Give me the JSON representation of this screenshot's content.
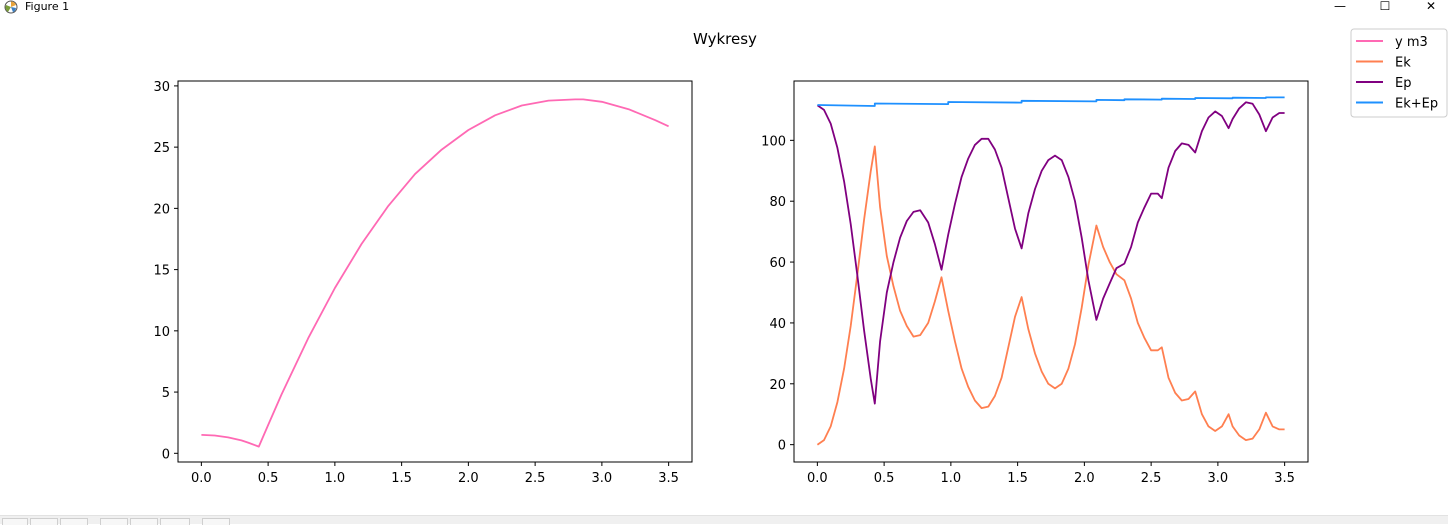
{
  "window": {
    "title": "Figure 1",
    "icon": "matplotlib-icon",
    "buttons": [
      {
        "name": "minimize-button",
        "glyph": "—"
      },
      {
        "name": "maximize-button",
        "glyph": "☐"
      },
      {
        "name": "close-button",
        "glyph": "✕"
      }
    ]
  },
  "toolbar": {
    "buttons": [
      "home-icon",
      "back-icon",
      "forward-icon",
      "pan-icon",
      "zoom-icon",
      "subplots-icon",
      "save-icon"
    ]
  },
  "figure": {
    "suptitle": "Wykresy"
  },
  "chart_data": [
    {
      "type": "line",
      "title": "",
      "xlabel": "",
      "ylabel": "",
      "xlim": [
        -0.175,
        3.675
      ],
      "ylim": [
        -0.71,
        30.4
      ],
      "xticks": [
        0.0,
        0.5,
        1.0,
        1.5,
        2.0,
        2.5,
        3.0,
        3.5
      ],
      "xtick_labels": [
        "0.0",
        "0.5",
        "1.0",
        "1.5",
        "2.0",
        "2.5",
        "3.0",
        "3.5"
      ],
      "yticks": [
        0,
        5,
        10,
        15,
        20,
        25,
        30
      ],
      "ytick_labels": [
        "0",
        "5",
        "10",
        "15",
        "20",
        "25",
        "30"
      ],
      "grid": false,
      "series": [
        {
          "name": "y m3",
          "color": "#ff69b4",
          "x": [
            0.0,
            0.1,
            0.2,
            0.3,
            0.35,
            0.43,
            0.5,
            0.6,
            0.8,
            1.0,
            1.2,
            1.4,
            1.6,
            1.8,
            2.0,
            2.2,
            2.4,
            2.6,
            2.8,
            2.86,
            3.0,
            3.2,
            3.4,
            3.5
          ],
          "y": [
            1.5,
            1.45,
            1.3,
            1.05,
            0.87,
            0.55,
            2.3,
            4.8,
            9.4,
            13.5,
            17.1,
            20.2,
            22.8,
            24.8,
            26.4,
            27.6,
            28.4,
            28.8,
            28.9,
            28.9,
            28.7,
            28.1,
            27.2,
            26.7
          ]
        }
      ]
    },
    {
      "type": "line",
      "title": "",
      "xlabel": "",
      "ylabel": "",
      "xlim": [
        -0.175,
        3.675
      ],
      "ylim": [
        -5.7,
        119.5
      ],
      "xticks": [
        0.0,
        0.5,
        1.0,
        1.5,
        2.0,
        2.5,
        3.0,
        3.5
      ],
      "xtick_labels": [
        "0.0",
        "0.5",
        "1.0",
        "1.5",
        "2.0",
        "2.5",
        "3.0",
        "3.5"
      ],
      "yticks": [
        0,
        20,
        40,
        60,
        80,
        100
      ],
      "ytick_labels": [
        "0",
        "20",
        "40",
        "60",
        "80",
        "100"
      ],
      "grid": false,
      "legend": "upper-right-outside",
      "series": [
        {
          "name": "Ek",
          "color": "#ff7f50",
          "x": [
            0.0,
            0.05,
            0.1,
            0.15,
            0.2,
            0.25,
            0.3,
            0.35,
            0.4,
            0.43,
            0.47,
            0.52,
            0.57,
            0.62,
            0.67,
            0.72,
            0.77,
            0.83,
            0.88,
            0.93,
            0.98,
            1.03,
            1.08,
            1.13,
            1.18,
            1.23,
            1.28,
            1.33,
            1.38,
            1.43,
            1.48,
            1.53,
            1.58,
            1.63,
            1.68,
            1.73,
            1.78,
            1.83,
            1.88,
            1.93,
            1.98,
            2.03,
            2.09,
            2.14,
            2.19,
            2.24,
            2.3,
            2.35,
            2.4,
            2.45,
            2.5,
            2.55,
            2.58,
            2.63,
            2.68,
            2.73,
            2.78,
            2.83,
            2.88,
            2.93,
            2.98,
            3.03,
            3.08,
            3.11,
            3.16,
            3.21,
            3.26,
            3.31,
            3.36,
            3.41,
            3.46,
            3.5
          ],
          "y": [
            0,
            1.5,
            6,
            14,
            25,
            39,
            56,
            74,
            90,
            98,
            78,
            62,
            52,
            44,
            39,
            35.5,
            36,
            40,
            47,
            55,
            44,
            34,
            25,
            19,
            14.5,
            12,
            12.5,
            16,
            22,
            32,
            42,
            48.5,
            38,
            30,
            24,
            20,
            18.5,
            20,
            25,
            33,
            45,
            59,
            72,
            65,
            60,
            56,
            54,
            48,
            40,
            35,
            31,
            31,
            32,
            22,
            17,
            14.5,
            15,
            17.5,
            10,
            6,
            4.5,
            6,
            10,
            6,
            3,
            1.5,
            2,
            5,
            10.5,
            6,
            5,
            5
          ]
        },
        {
          "name": "Ep",
          "color": "#800080",
          "x": [
            0.0,
            0.05,
            0.1,
            0.15,
            0.2,
            0.25,
            0.3,
            0.35,
            0.4,
            0.43,
            0.47,
            0.52,
            0.57,
            0.62,
            0.67,
            0.72,
            0.77,
            0.83,
            0.88,
            0.93,
            0.98,
            1.03,
            1.08,
            1.13,
            1.18,
            1.23,
            1.28,
            1.33,
            1.38,
            1.43,
            1.48,
            1.53,
            1.58,
            1.63,
            1.68,
            1.73,
            1.78,
            1.83,
            1.88,
            1.93,
            1.98,
            2.03,
            2.09,
            2.14,
            2.19,
            2.24,
            2.3,
            2.35,
            2.4,
            2.45,
            2.5,
            2.55,
            2.58,
            2.63,
            2.68,
            2.73,
            2.78,
            2.83,
            2.88,
            2.93,
            2.98,
            3.03,
            3.08,
            3.11,
            3.16,
            3.21,
            3.26,
            3.31,
            3.36,
            3.41,
            3.46,
            3.5
          ],
          "y": [
            111.5,
            110,
            105.5,
            97.5,
            86.5,
            72.5,
            55.5,
            37.5,
            21.5,
            13.5,
            34,
            50,
            60,
            68,
            73.5,
            76.5,
            77,
            73,
            66,
            57.5,
            69,
            79,
            88,
            94,
            98.5,
            100.5,
            100.5,
            97,
            91,
            81,
            71,
            64.5,
            76,
            84,
            90,
            93.5,
            95,
            93.5,
            88,
            80,
            68,
            54,
            41,
            48,
            53,
            58,
            59.5,
            65,
            73,
            78,
            82.5,
            82.5,
            81,
            91,
            96.5,
            99,
            98.5,
            96,
            103,
            107.5,
            109.5,
            108,
            104,
            107,
            110.5,
            112.5,
            112,
            108.5,
            103,
            107.5,
            109,
            109
          ]
        },
        {
          "name": "Ek+Ep",
          "color": "#1e90ff",
          "x": [
            0.0,
            0.43,
            0.43,
            0.98,
            0.98,
            1.53,
            1.53,
            2.09,
            2.09,
            2.3,
            2.3,
            2.58,
            2.58,
            2.83,
            2.83,
            3.11,
            3.11,
            3.36,
            3.36,
            3.5
          ],
          "y": [
            111.6,
            111.3,
            112.1,
            111.9,
            112.6,
            112.4,
            113.0,
            112.8,
            113.3,
            113.2,
            113.5,
            113.4,
            113.7,
            113.6,
            113.9,
            113.8,
            114.0,
            113.9,
            114.1,
            114.1
          ]
        }
      ]
    }
  ],
  "legend": {
    "entries": [
      {
        "label": "y m3",
        "color": "#ff69b4"
      },
      {
        "label": "Ek",
        "color": "#ff7f50"
      },
      {
        "label": "Ep",
        "color": "#800080"
      },
      {
        "label": "Ek+Ep",
        "color": "#1e90ff"
      }
    ]
  }
}
